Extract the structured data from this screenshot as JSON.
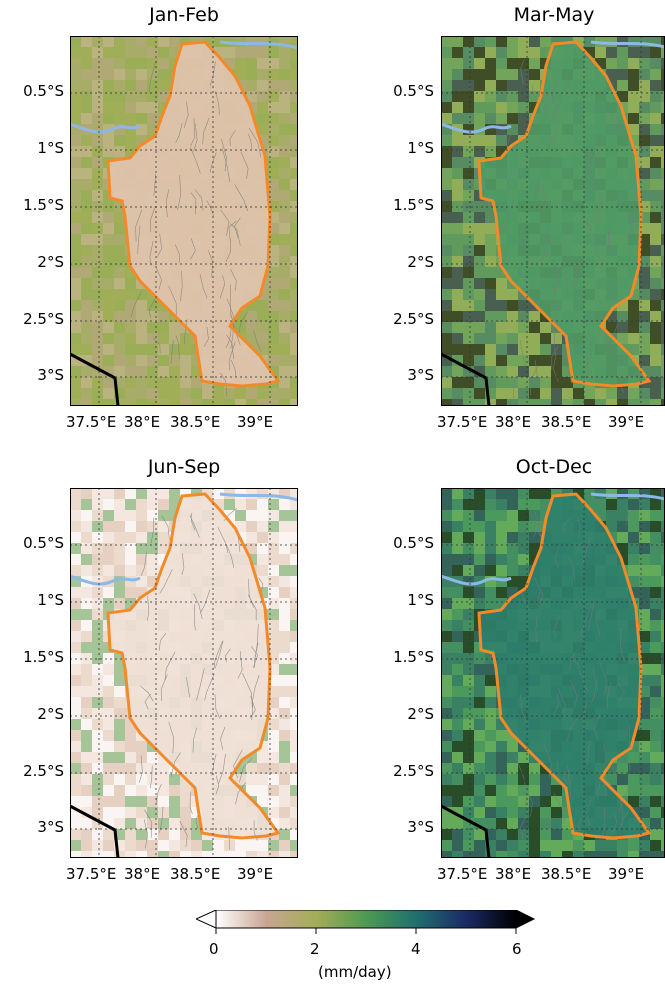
{
  "panels": [
    {
      "title": "Jan-Feb",
      "mean_precip_mm_day": 1.0,
      "base_color": "#e2c4b0",
      "surround_color": "#96ab55"
    },
    {
      "title": "Mar-May",
      "mean_precip_mm_day": 3.5,
      "base_color": "#4f9a66",
      "surround_color": "#8fad58"
    },
    {
      "title": "Jun-Sep",
      "mean_precip_mm_day": 0.3,
      "base_color": "#f0e0d6",
      "surround_color": "#f4e8e2"
    },
    {
      "title": "Oct-Dec",
      "mean_precip_mm_day": 4.3,
      "base_color": "#2e7f6b",
      "surround_color": "#5ba85b"
    }
  ],
  "y_ticks": [
    "0.5°S",
    "1°S",
    "1.5°S",
    "2°S",
    "2.5°S",
    "3°S"
  ],
  "x_ticks": [
    "37.5°E",
    "38°E",
    "38.5°E",
    "39°E"
  ],
  "colorbar": {
    "ticks": [
      "0",
      "2",
      "4",
      "6"
    ],
    "label": "(mm/day)",
    "min": 0,
    "max": 6,
    "colors": [
      "#ffffff",
      "#c9a593",
      "#a4ad58",
      "#4e9a52",
      "#1f6f6e",
      "#1b2a66",
      "#000000"
    ]
  },
  "legend_colors": {
    "basin_outline": "#f28a2a",
    "rivers": "#7a7a7a",
    "lake_river": "#8db8e6",
    "border": "#000000"
  }
}
